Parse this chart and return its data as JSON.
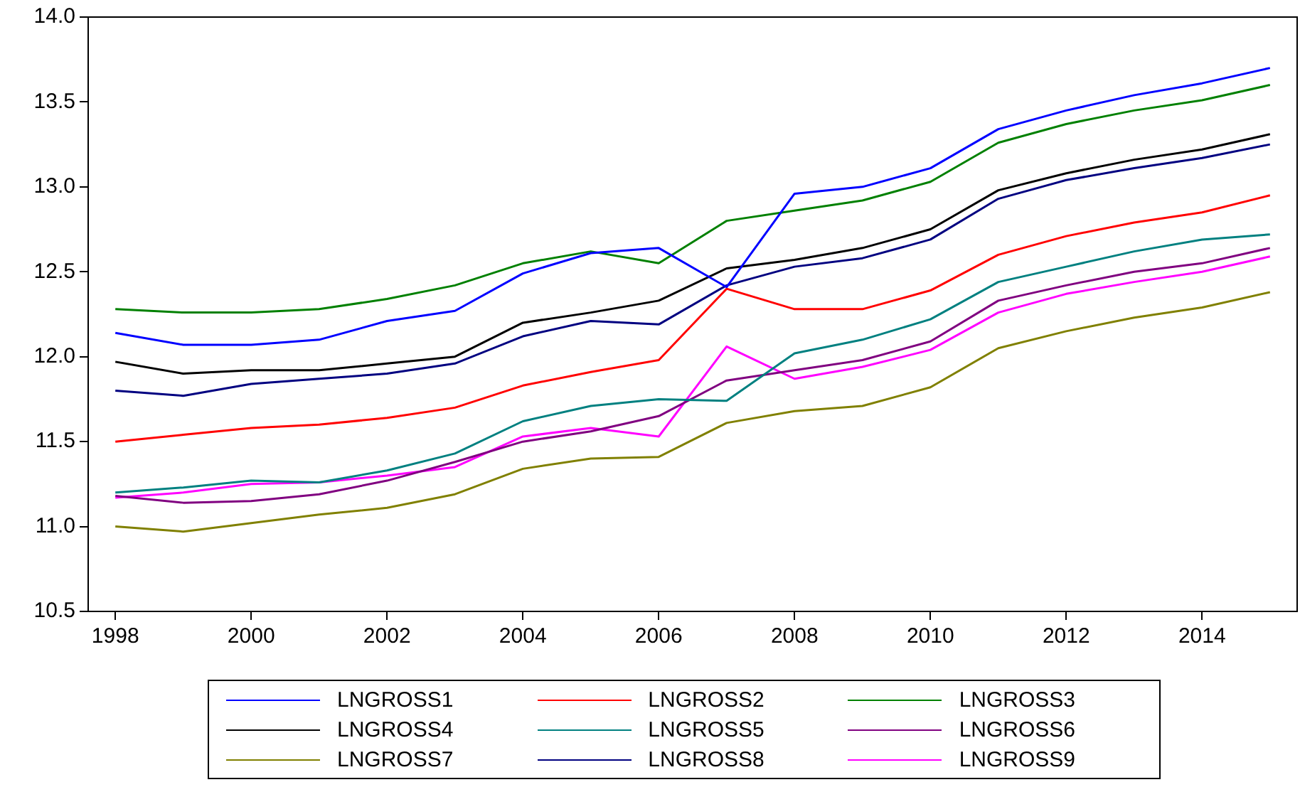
{
  "chart_data": {
    "type": "line",
    "x": [
      1998,
      1999,
      2000,
      2001,
      2002,
      2003,
      2004,
      2005,
      2006,
      2007,
      2008,
      2009,
      2010,
      2011,
      2012,
      2013,
      2014,
      2015
    ],
    "xlim": [
      1997.6,
      2015.4
    ],
    "xticks": [
      1998,
      2000,
      2002,
      2004,
      2006,
      2008,
      2010,
      2012,
      2014
    ],
    "ylim": [
      10.5,
      14.0
    ],
    "yticks": [
      {
        "value": 10.5,
        "label": "10.5"
      },
      {
        "value": 11,
        "label": "11.0"
      },
      {
        "value": 11.5,
        "label": "11.5"
      },
      {
        "value": 12,
        "label": "12.0"
      },
      {
        "value": 12.5,
        "label": "12.5"
      },
      {
        "value": 13,
        "label": "13.0"
      },
      {
        "value": 13.5,
        "label": "13.5"
      },
      {
        "value": 14,
        "label": "14.0"
      }
    ],
    "grid": false,
    "legend": "bottom",
    "marker": "none",
    "line_style": "solid",
    "series": [
      {
        "name": "LNGROSS1",
        "color": "#0000ff",
        "values": [
          12.14,
          12.07,
          12.07,
          12.1,
          12.21,
          12.27,
          12.49,
          12.61,
          12.64,
          12.41,
          12.96,
          13.0,
          13.11,
          13.34,
          13.45,
          13.54,
          13.61,
          13.7
        ]
      },
      {
        "name": "LNGROSS2",
        "color": "#ff0000",
        "values": [
          11.5,
          11.54,
          11.58,
          11.6,
          11.64,
          11.7,
          11.83,
          11.91,
          11.98,
          12.4,
          12.28,
          12.28,
          12.39,
          12.6,
          12.71,
          12.79,
          12.85,
          12.95
        ]
      },
      {
        "name": "LNGROSS3",
        "color": "#008000",
        "values": [
          12.28,
          12.26,
          12.26,
          12.28,
          12.34,
          12.42,
          12.55,
          12.62,
          12.55,
          12.8,
          12.86,
          12.92,
          13.03,
          13.26,
          13.37,
          13.45,
          13.51,
          13.6
        ]
      },
      {
        "name": "LNGROSS4",
        "color": "#000000",
        "values": [
          11.97,
          11.9,
          11.92,
          11.92,
          11.96,
          12.0,
          12.2,
          12.26,
          12.33,
          12.52,
          12.57,
          12.64,
          12.75,
          12.98,
          13.08,
          13.16,
          13.22,
          13.31
        ]
      },
      {
        "name": "LNGROSS5",
        "color": "#008080",
        "values": [
          11.2,
          11.23,
          11.27,
          11.26,
          11.33,
          11.43,
          11.62,
          11.71,
          11.75,
          11.74,
          12.02,
          12.1,
          12.22,
          12.44,
          12.53,
          12.62,
          12.69,
          12.72
        ]
      },
      {
        "name": "LNGROSS6",
        "color": "#800080",
        "values": [
          11.18,
          11.14,
          11.15,
          11.19,
          11.27,
          11.38,
          11.5,
          11.56,
          11.65,
          11.86,
          11.92,
          11.98,
          12.09,
          12.33,
          12.42,
          12.5,
          12.55,
          12.64
        ]
      },
      {
        "name": "LNGROSS7",
        "color": "#808000",
        "values": [
          11.0,
          10.97,
          11.02,
          11.07,
          11.11,
          11.19,
          11.34,
          11.4,
          11.41,
          11.61,
          11.68,
          11.71,
          11.82,
          12.05,
          12.15,
          12.23,
          12.29,
          12.38
        ]
      },
      {
        "name": "LNGROSS8",
        "color": "#000080",
        "values": [
          11.8,
          11.77,
          11.84,
          11.87,
          11.9,
          11.96,
          12.12,
          12.21,
          12.19,
          12.42,
          12.53,
          12.58,
          12.69,
          12.93,
          13.04,
          13.11,
          13.17,
          13.25
        ]
      },
      {
        "name": "LNGROSS9",
        "color": "#ff00ff",
        "values": [
          11.17,
          11.2,
          11.25,
          11.26,
          11.3,
          11.35,
          11.53,
          11.58,
          11.53,
          12.06,
          11.87,
          11.94,
          12.04,
          12.26,
          12.37,
          12.44,
          12.5,
          12.59
        ]
      }
    ]
  }
}
